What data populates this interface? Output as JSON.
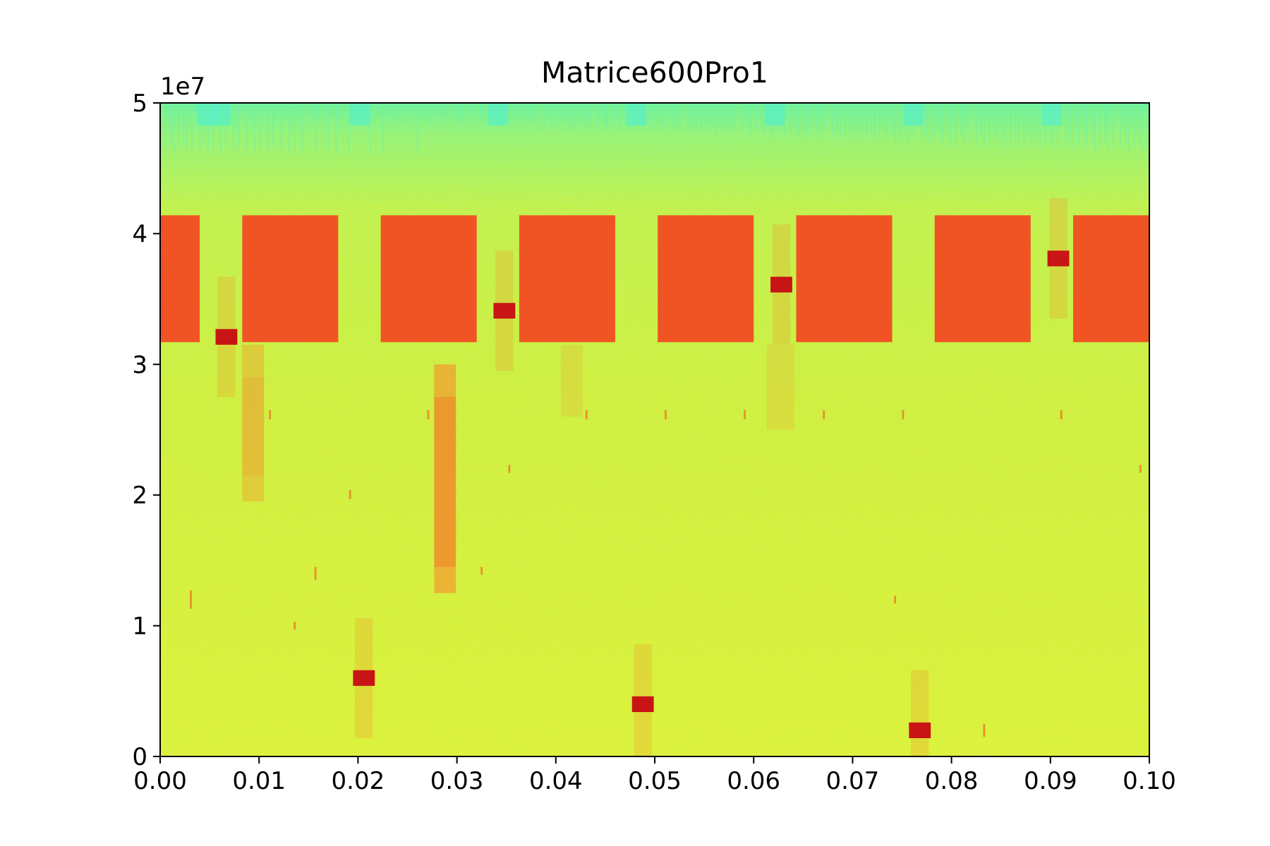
{
  "chart_data": {
    "type": "heatmap",
    "subtype": "spectrogram",
    "title": "Matrice600Pro1",
    "xlabel": "",
    "ylabel": "",
    "x_range": [
      0.0,
      0.1
    ],
    "y_range": [
      0,
      50000000
    ],
    "y_offset_label": "1e7",
    "x_ticks": [
      0.0,
      0.01,
      0.02,
      0.03,
      0.04,
      0.05,
      0.06,
      0.07,
      0.08,
      0.09,
      0.1
    ],
    "x_tick_labels": [
      "0.00",
      "0.01",
      "0.02",
      "0.03",
      "0.04",
      "0.05",
      "0.06",
      "0.07",
      "0.08",
      "0.09",
      "0.10"
    ],
    "y_ticks": [
      0,
      10000000,
      20000000,
      30000000,
      40000000,
      50000000
    ],
    "y_tick_labels": [
      "0",
      "1",
      "2",
      "3",
      "4",
      "5"
    ],
    "grid": false,
    "legend": "none",
    "colormap": "jet",
    "colors": {
      "background_low": "#dcef2a",
      "background_high": "#9cf56a",
      "top_band": "#58f0c8",
      "block": "#f0521e",
      "burst": "#c81414",
      "weak_emission": "#f0a030",
      "trace": "#f07828"
    },
    "background_band": {
      "time_range": [
        0.0,
        0.1
      ],
      "freq_range": [
        0,
        50000000
      ],
      "level": "low"
    },
    "strong_blocks": [
      {
        "time_range": [
          0.0,
          0.004
        ],
        "freq_range": [
          31700000,
          41400000
        ]
      },
      {
        "time_range": [
          0.0083,
          0.018
        ],
        "freq_range": [
          31700000,
          41400000
        ]
      },
      {
        "time_range": [
          0.0223,
          0.032
        ],
        "freq_range": [
          31700000,
          41400000
        ]
      },
      {
        "time_range": [
          0.0363,
          0.046
        ],
        "freq_range": [
          31700000,
          41400000
        ]
      },
      {
        "time_range": [
          0.0503,
          0.06
        ],
        "freq_range": [
          31700000,
          41400000
        ]
      },
      {
        "time_range": [
          0.0643,
          0.074
        ],
        "freq_range": [
          31700000,
          41400000
        ]
      },
      {
        "time_range": [
          0.0783,
          0.088
        ],
        "freq_range": [
          31700000,
          41400000
        ]
      },
      {
        "time_range": [
          0.0923,
          0.1
        ],
        "freq_range": [
          31700000,
          41400000
        ]
      }
    ],
    "bursts": [
      {
        "time_range": [
          0.0056,
          0.0078
        ],
        "freq_range": [
          31500000,
          32700000
        ]
      },
      {
        "time_range": [
          0.0195,
          0.0217
        ],
        "freq_range": [
          5400000,
          6600000
        ]
      },
      {
        "time_range": [
          0.0337,
          0.0359
        ],
        "freq_range": [
          33500000,
          34700000
        ]
      },
      {
        "time_range": [
          0.0477,
          0.0499
        ],
        "freq_range": [
          3400000,
          4600000
        ]
      },
      {
        "time_range": [
          0.0617,
          0.0639
        ],
        "freq_range": [
          35500000,
          36700000
        ]
      },
      {
        "time_range": [
          0.0757,
          0.0779
        ],
        "freq_range": [
          1400000,
          2600000
        ]
      },
      {
        "time_range": [
          0.0897,
          0.0919
        ],
        "freq_range": [
          37500000,
          38700000
        ]
      }
    ],
    "weak_emissions": [
      {
        "time_range": [
          0.0083,
          0.0105
        ],
        "freq_range": [
          19500000,
          31500000
        ]
      },
      {
        "time_range": [
          0.0277,
          0.0299
        ],
        "freq_range": [
          12500000,
          30000000
        ]
      }
    ],
    "faint_emissions": [
      {
        "time_range": [
          0.0405,
          0.0427
        ],
        "freq_range": [
          26000000,
          31500000
        ]
      },
      {
        "time_range": [
          0.0613,
          0.0641
        ],
        "freq_range": [
          25000000,
          31500000
        ]
      }
    ],
    "short_traces": [
      {
        "time": 0.0031,
        "freq_range": [
          11300000,
          12700000
        ]
      },
      {
        "time": 0.0157,
        "freq_range": [
          13500000,
          14500000
        ]
      },
      {
        "time": 0.0136,
        "freq_range": [
          9700000,
          10300000
        ]
      },
      {
        "time": 0.0192,
        "freq_range": [
          19700000,
          20400000
        ]
      },
      {
        "time": 0.0353,
        "freq_range": [
          21700000,
          22300000
        ]
      },
      {
        "time": 0.0325,
        "freq_range": [
          13900000,
          14500000
        ]
      },
      {
        "time": 0.0111,
        "freq_range": [
          25800000,
          26500000
        ]
      },
      {
        "time": 0.0271,
        "freq_range": [
          25800000,
          26500000
        ]
      },
      {
        "time": 0.0431,
        "freq_range": [
          25800000,
          26500000
        ]
      },
      {
        "time": 0.0511,
        "freq_range": [
          25800000,
          26500000
        ]
      },
      {
        "time": 0.0591,
        "freq_range": [
          25800000,
          26500000
        ]
      },
      {
        "time": 0.0671,
        "freq_range": [
          25800000,
          26500000
        ]
      },
      {
        "time": 0.0751,
        "freq_range": [
          25800000,
          26500000
        ]
      },
      {
        "time": 0.0911,
        "freq_range": [
          25800000,
          26500000
        ]
      },
      {
        "time": 0.0743,
        "freq_range": [
          11700000,
          12300000
        ]
      },
      {
        "time": 0.0833,
        "freq_range": [
          1500000,
          2500000
        ]
      },
      {
        "time": 0.0991,
        "freq_range": [
          21700000,
          22300000
        ]
      }
    ]
  }
}
